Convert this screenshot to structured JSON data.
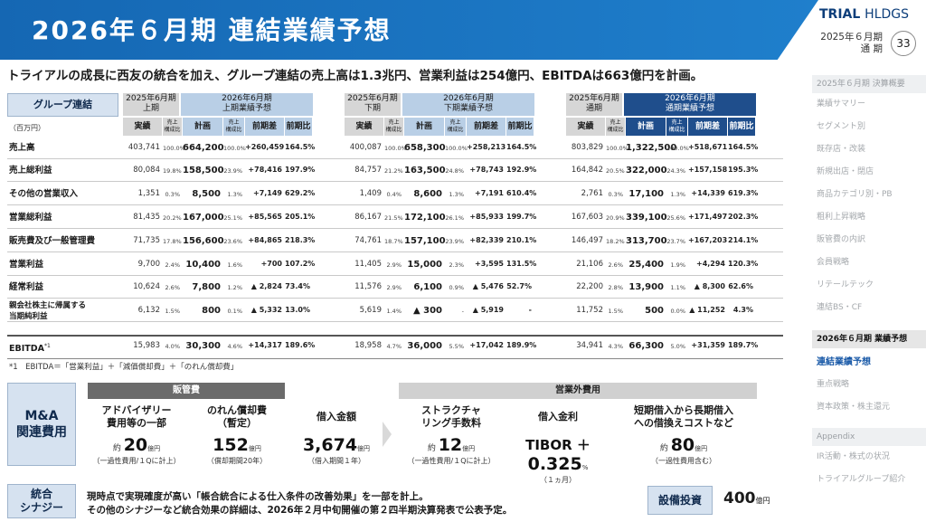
{
  "header": {
    "title": "2026年６月期 連結業績予想",
    "logo_main": "TRIAL",
    "logo_sub": "HLDGS",
    "period": "2025年６月期",
    "period_sub": "通 期",
    "page": "33"
  },
  "subtitle": "トライアルの成長に西友の統合を加え、グループ連結の売上高は1.3兆円、営業利益は254億円、EBITDAは663億円を計画。",
  "table": {
    "group_label": "グループ連結",
    "unit": "（百万円）",
    "blocks": [
      {
        "prev": "2025年6月期\n上期",
        "plan": "2026年6月期\n上期業績予想"
      },
      {
        "prev": "2025年6月期\n下期",
        "plan": "2026年6月期\n下期業績予想"
      },
      {
        "prev": "2025年6月期\n通期",
        "plan": "2026年6月期\n通期業績予想"
      }
    ],
    "subheaders": {
      "actual": "実績",
      "ratio": "売上\n構成比",
      "plan": "計画",
      "diff": "前期差",
      "yoy": "前期比"
    },
    "rows": [
      {
        "label": "売上高",
        "v": [
          [
            "403,741",
            "100.0%",
            "664,200",
            "100.0%",
            "+260,459",
            "164.5%"
          ],
          [
            "400,087",
            "100.0%",
            "658,300",
            "100.0%",
            "+258,213",
            "164.5%"
          ],
          [
            "803,829",
            "100.0%",
            "1,322,500",
            "100.0%",
            "+518,671",
            "164.5%"
          ]
        ]
      },
      {
        "label": "売上総利益",
        "v": [
          [
            "80,084",
            "19.8%",
            "158,500",
            "23.9%",
            "+78,416",
            "197.9%"
          ],
          [
            "84,757",
            "21.2%",
            "163,500",
            "24.8%",
            "+78,743",
            "192.9%"
          ],
          [
            "164,842",
            "20.5%",
            "322,000",
            "24.3%",
            "+157,158",
            "195.3%"
          ]
        ]
      },
      {
        "label": "その他の営業収入",
        "v": [
          [
            "1,351",
            "0.3%",
            "8,500",
            "1.3%",
            "+7,149",
            "629.2%"
          ],
          [
            "1,409",
            "0.4%",
            "8,600",
            "1.3%",
            "+7,191",
            "610.4%"
          ],
          [
            "2,761",
            "0.3%",
            "17,100",
            "1.3%",
            "+14,339",
            "619.3%"
          ]
        ]
      },
      {
        "label": "営業総利益",
        "v": [
          [
            "81,435",
            "20.2%",
            "167,000",
            "25.1%",
            "+85,565",
            "205.1%"
          ],
          [
            "86,167",
            "21.5%",
            "172,100",
            "26.1%",
            "+85,933",
            "199.7%"
          ],
          [
            "167,603",
            "20.9%",
            "339,100",
            "25.6%",
            "+171,497",
            "202.3%"
          ]
        ]
      },
      {
        "label": "販売費及び一般管理費",
        "v": [
          [
            "71,735",
            "17.8%",
            "156,600",
            "23.6%",
            "+84,865",
            "218.3%"
          ],
          [
            "74,761",
            "18.7%",
            "157,100",
            "23.9%",
            "+82,339",
            "210.1%"
          ],
          [
            "146,497",
            "18.2%",
            "313,700",
            "23.7%",
            "+167,203",
            "214.1%"
          ]
        ]
      },
      {
        "label": "営業利益",
        "v": [
          [
            "9,700",
            "2.4%",
            "10,400",
            "1.6%",
            "+700",
            "107.2%"
          ],
          [
            "11,405",
            "2.9%",
            "15,000",
            "2.3%",
            "+3,595",
            "131.5%"
          ],
          [
            "21,106",
            "2.6%",
            "25,400",
            "1.9%",
            "+4,294",
            "120.3%"
          ]
        ]
      },
      {
        "label": "経常利益",
        "v": [
          [
            "10,624",
            "2.6%",
            "7,800",
            "1.2%",
            "▲ 2,824",
            "73.4%"
          ],
          [
            "11,576",
            "2.9%",
            "6,100",
            "0.9%",
            "▲ 5,476",
            "52.7%"
          ],
          [
            "22,200",
            "2.8%",
            "13,900",
            "1.1%",
            "▲ 8,300",
            "62.6%"
          ]
        ]
      },
      {
        "label": "親会社株主に帰属する\n当期純利益",
        "v": [
          [
            "6,132",
            "1.5%",
            "800",
            "0.1%",
            "▲ 5,332",
            "13.0%"
          ],
          [
            "5,619",
            "1.4%",
            "▲ 300",
            "-",
            "▲ 5,919",
            "-"
          ],
          [
            "11,752",
            "1.5%",
            "500",
            "0.0%",
            "▲ 11,252",
            "4.3%"
          ]
        ]
      },
      {
        "label": "EBITDA",
        "v": [
          [
            "15,983",
            "4.0%",
            "30,300",
            "4.6%",
            "+14,317",
            "189.6%"
          ],
          [
            "18,958",
            "4.7%",
            "36,000",
            "5.5%",
            "+17,042",
            "189.9%"
          ],
          [
            "34,941",
            "4.3%",
            "66,300",
            "5.0%",
            "+31,359",
            "189.7%"
          ]
        ]
      }
    ],
    "ebitda_sup": "*1",
    "footnote": "*1　EBITDA＝「営業利益」＋「減価償却費」＋「のれん償却費」"
  },
  "ma": {
    "title": "M&A\n関連費用",
    "sga_label": "販管費",
    "nonop_label": "営業外費用",
    "items": [
      {
        "label": "アドバイザリー\n費用等の一部",
        "pre": "約 ",
        "val": "20",
        "unit": "億円",
        "note": "（一過性費用/１Qに計上）"
      },
      {
        "label": "のれん償却費\n（暫定）",
        "pre": "",
        "val": "152",
        "unit": "億円",
        "note": "（償却期間20年）"
      },
      {
        "label": "借入金額",
        "pre": "",
        "val": "3,674",
        "unit": "億円",
        "note": "（借入期間１年）"
      },
      {
        "label": "ストラクチャ\nリング手数料",
        "pre": "約 ",
        "val": "12",
        "unit": "億円",
        "note": "（一過性費用/１Qに計上）"
      },
      {
        "label": "借入金利",
        "pre": "TIBOR ＋ ",
        "val": "0.325",
        "unit": "%",
        "note": "（１ヵ月）"
      },
      {
        "label": "短期借入から長期借入\nへの借換えコストなど",
        "pre": "約 ",
        "val": "80",
        "unit": "億円",
        "note": "（一過性費用含む）"
      }
    ]
  },
  "synergy": {
    "title": "統合\nシナジー",
    "line1": "現時点で実現確度が高い「帳合統合による仕入条件の改善効果」を一部を計上。",
    "line2": "その他のシナジーなど統合効果の詳細は、2026年２月中旬開催の第２四半期決算発表で公表予定。"
  },
  "capex": {
    "label": "設備投資",
    "value": "400",
    "unit": "億円"
  },
  "nav": {
    "sec1": "2025年６月期 決算概要",
    "items1": [
      "業績サマリー",
      "セグメント別",
      "既存店・改装",
      "新規出店・閉店",
      "商品カテゴリ別・PB",
      "粗利上昇戦略",
      "販管費の内訳",
      "会員戦略",
      "リテールテック",
      "連結BS・CF"
    ],
    "sec2": "2026年６月期 業績予想",
    "items2": [
      "連結業績予想",
      "重点戦略",
      "資本政策・株主還元"
    ],
    "sec3": "Appendix",
    "items3": [
      "IR活動・株式の状況",
      "トライアルグループ紹介"
    ]
  }
}
